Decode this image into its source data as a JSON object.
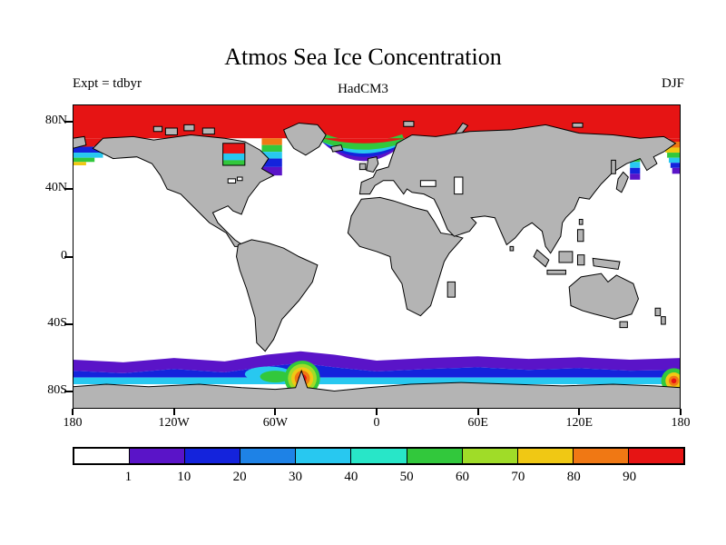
{
  "header": {
    "title": "Atmos Sea Ice Concentration",
    "experiment": "Expt = tdbyr",
    "model": "HadCM3",
    "season": "DJF"
  },
  "map": {
    "land_color": "#b4b4b4",
    "ocean_color": "#ffffff",
    "border_color": "#000000"
  },
  "axes": {
    "y_ticks": [
      {
        "label": "80N",
        "lat": 80
      },
      {
        "label": "40N",
        "lat": 40
      },
      {
        "label": "0",
        "lat": 0
      },
      {
        "label": "40S",
        "lat": -40
      },
      {
        "label": "80S",
        "lat": -80
      }
    ],
    "x_ticks": [
      {
        "label": "180",
        "lon": -180
      },
      {
        "label": "120W",
        "lon": -120
      },
      {
        "label": "60W",
        "lon": -60
      },
      {
        "label": "0",
        "lon": 0
      },
      {
        "label": "60E",
        "lon": 60
      },
      {
        "label": "120E",
        "lon": 120
      },
      {
        "label": "180",
        "lon": 180
      }
    ]
  },
  "colorbar": {
    "labels": [
      "1",
      "10",
      "20",
      "30",
      "40",
      "50",
      "60",
      "70",
      "80",
      "90"
    ],
    "colors": [
      "#ffffff",
      "#5a14c8",
      "#1423dc",
      "#1e82e6",
      "#28c8f0",
      "#28e6c8",
      "#32c83c",
      "#a0dc28",
      "#f0c814",
      "#f07814",
      "#e61414"
    ]
  },
  "chart_data": {
    "type": "heatmap",
    "title": "Atmos Sea Ice Concentration",
    "subtitle": "HadCM3",
    "experiment": "tdbyr",
    "season": "DJF",
    "projection": "latitude-longitude",
    "xlim": [
      -180,
      180
    ],
    "ylim": [
      -90,
      90
    ],
    "x_tick_labels": [
      "180",
      "120W",
      "60W",
      "0",
      "60E",
      "120E",
      "180"
    ],
    "y_tick_labels": [
      "80N",
      "40N",
      "0",
      "40S",
      "80S"
    ],
    "levels": [
      1,
      10,
      20,
      30,
      40,
      50,
      60,
      70,
      80,
      90
    ],
    "palette": [
      "#ffffff",
      "#5a14c8",
      "#1423dc",
      "#1e82e6",
      "#28c8f0",
      "#28e6c8",
      "#32c83c",
      "#a0dc28",
      "#f0c814",
      "#f07814",
      "#e61414"
    ],
    "legend_position": "bottom",
    "units": "percent",
    "regions": [
      {
        "area": "Arctic Ocean north of ~72N",
        "value": ">90"
      },
      {
        "area": "Bering Sea fringe",
        "value": "10-60 gradient decreasing southward"
      },
      {
        "area": "Hudson Bay",
        "value": "40-90"
      },
      {
        "area": "Davis Strait / Labrador Sea",
        "value": "10-80 gradient decreasing southward"
      },
      {
        "area": "Greenland-Norwegian Sea ice edge",
        "value": "10-60 banded fringe"
      },
      {
        "area": "Sea of Okhotsk / Kamchatka coast",
        "value": "10-90 gradient"
      },
      {
        "area": "Southern Ocean band ~58S-70S around Antarctica",
        "value": "1-40 increasing toward coast"
      },
      {
        "area": "Near Antarctic Peninsula (Weddell/Bellingshausen)",
        "value": "50-90+"
      },
      {
        "area": "Ross Sea sector near 180",
        "value": "50-90+"
      }
    ]
  }
}
